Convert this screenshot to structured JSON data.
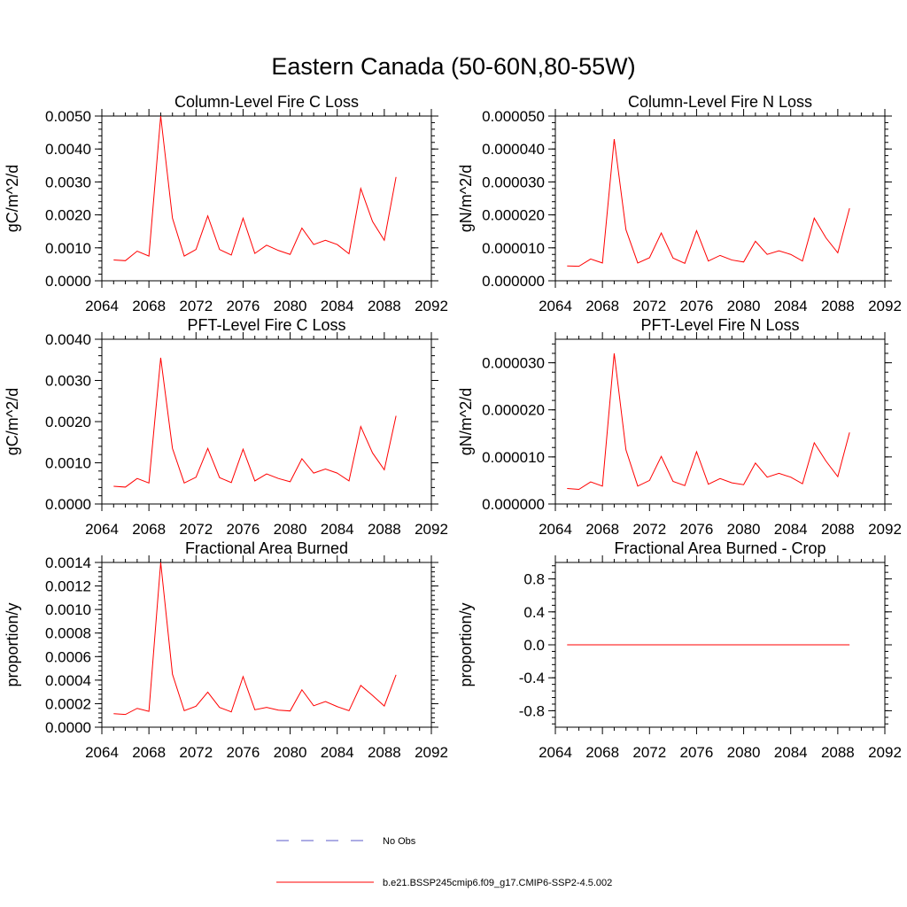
{
  "title": "Eastern Canada (50-60N,80-55W)",
  "colors": {
    "model": "#ff0000",
    "obs": "#5a5ac8"
  },
  "legend": [
    {
      "label": "No Obs",
      "style": "dashed",
      "color": "#5a5ac8"
    },
    {
      "label": "b.e21.BSSP245cmip6.f09_g17.CMIP6-SSP2-4.5.002",
      "style": "solid",
      "color": "#ff0000"
    }
  ],
  "chart_data": [
    {
      "type": "line",
      "title": "Column-Level Fire C Loss",
      "ylabel": "gC/m^2/d",
      "xlim": [
        2064,
        2092
      ],
      "ylim": [
        0,
        0.005
      ],
      "xticks": [
        2064,
        2068,
        2072,
        2076,
        2080,
        2084,
        2088,
        2092
      ],
      "yticks": [
        0,
        0.001,
        0.002,
        0.003,
        0.004,
        0.005
      ],
      "ytick_labels": [
        "0.0000",
        "0.0010",
        "0.0020",
        "0.0030",
        "0.0040",
        "0.0050"
      ],
      "x": [
        2065,
        2066,
        2067,
        2068,
        2069,
        2070,
        2071,
        2072,
        2073,
        2074,
        2075,
        2076,
        2077,
        2078,
        2079,
        2080,
        2081,
        2082,
        2083,
        2084,
        2085,
        2086,
        2087,
        2088,
        2089
      ],
      "series": [
        {
          "values": [
            0.00063,
            0.00061,
            0.0009,
            0.00075,
            0.005,
            0.0019,
            0.00075,
            0.00095,
            0.00197,
            0.00095,
            0.00078,
            0.0019,
            0.00083,
            0.00108,
            0.00092,
            0.0008,
            0.0016,
            0.0011,
            0.00123,
            0.0011,
            0.00082,
            0.0028,
            0.0018,
            0.00123,
            0.00315
          ]
        }
      ]
    },
    {
      "type": "line",
      "title": "Column-Level Fire N Loss",
      "ylabel": "gN/m^2/d",
      "xlim": [
        2064,
        2092
      ],
      "ylim": [
        0,
        5e-05
      ],
      "xticks": [
        2064,
        2068,
        2072,
        2076,
        2080,
        2084,
        2088,
        2092
      ],
      "yticks": [
        0,
        1e-05,
        2e-05,
        3e-05,
        4e-05,
        5e-05
      ],
      "ytick_labels": [
        "0.000000",
        "0.000010",
        "0.000020",
        "0.000030",
        "0.000040",
        "0.000050"
      ],
      "x": [
        2065,
        2066,
        2067,
        2068,
        2069,
        2070,
        2071,
        2072,
        2073,
        2074,
        2075,
        2076,
        2077,
        2078,
        2079,
        2080,
        2081,
        2082,
        2083,
        2084,
        2085,
        2086,
        2087,
        2088,
        2089
      ],
      "series": [
        {
          "values": [
            4.5e-06,
            4.4e-06,
            6.6e-06,
            5.4e-06,
            4.3e-05,
            1.55e-05,
            5.4e-06,
            7e-06,
            1.45e-05,
            6.9e-06,
            5.3e-06,
            1.52e-05,
            6e-06,
            7.7e-06,
            6.3e-06,
            5.7e-06,
            1.2e-05,
            8e-06,
            9.1e-06,
            8e-06,
            6e-06,
            1.9e-05,
            1.3e-05,
            8.5e-06,
            2.2e-05
          ]
        }
      ]
    },
    {
      "type": "line",
      "title": "PFT-Level Fire C Loss",
      "ylabel": "gC/m^2/d",
      "xlim": [
        2064,
        2092
      ],
      "ylim": [
        0,
        0.004
      ],
      "xticks": [
        2064,
        2068,
        2072,
        2076,
        2080,
        2084,
        2088,
        2092
      ],
      "yticks": [
        0,
        0.001,
        0.002,
        0.003,
        0.004
      ],
      "ytick_labels": [
        "0.0000",
        "0.0010",
        "0.0020",
        "0.0030",
        "0.0040"
      ],
      "x": [
        2065,
        2066,
        2067,
        2068,
        2069,
        2070,
        2071,
        2072,
        2073,
        2074,
        2075,
        2076,
        2077,
        2078,
        2079,
        2080,
        2081,
        2082,
        2083,
        2084,
        2085,
        2086,
        2087,
        2088,
        2089
      ],
      "series": [
        {
          "values": [
            0.00043,
            0.00041,
            0.00062,
            0.00051,
            0.00355,
            0.00135,
            0.00051,
            0.00065,
            0.00135,
            0.00064,
            0.00052,
            0.00133,
            0.00056,
            0.00073,
            0.00062,
            0.00054,
            0.0011,
            0.00075,
            0.00085,
            0.00075,
            0.00056,
            0.00188,
            0.00124,
            0.00083,
            0.00214
          ]
        }
      ]
    },
    {
      "type": "line",
      "title": "PFT-Level Fire N Loss",
      "ylabel": "gN/m^2/d",
      "xlim": [
        2064,
        2092
      ],
      "ylim": [
        0,
        3.5e-05
      ],
      "xticks": [
        2064,
        2068,
        2072,
        2076,
        2080,
        2084,
        2088,
        2092
      ],
      "yticks": [
        0,
        1e-05,
        2e-05,
        3e-05
      ],
      "ytick_labels": [
        "0.000000",
        "0.000010",
        "0.000020",
        "0.000030"
      ],
      "x": [
        2065,
        2066,
        2067,
        2068,
        2069,
        2070,
        2071,
        2072,
        2073,
        2074,
        2075,
        2076,
        2077,
        2078,
        2079,
        2080,
        2081,
        2082,
        2083,
        2084,
        2085,
        2086,
        2087,
        2088,
        2089
      ],
      "series": [
        {
          "values": [
            3.3e-06,
            3.1e-06,
            4.7e-06,
            3.8e-06,
            3.2e-05,
            1.15e-05,
            3.8e-06,
            5e-06,
            1.01e-05,
            4.8e-06,
            3.9e-06,
            1.11e-05,
            4.2e-06,
            5.4e-06,
            4.5e-06,
            4.1e-06,
            8.7e-06,
            5.7e-06,
            6.5e-06,
            5.7e-06,
            4.3e-06,
            1.3e-05,
            9.1e-06,
            5.8e-06,
            1.52e-05
          ]
        }
      ]
    },
    {
      "type": "line",
      "title": "Fractional Area Burned",
      "ylabel": "proportion/y",
      "xlim": [
        2064,
        2092
      ],
      "ylim": [
        0,
        0.0014
      ],
      "xticks": [
        2064,
        2068,
        2072,
        2076,
        2080,
        2084,
        2088,
        2092
      ],
      "yticks": [
        0,
        0.0002,
        0.0004,
        0.0006,
        0.0008,
        0.001,
        0.0012,
        0.0014
      ],
      "ytick_labels": [
        "0.0000",
        "0.0002",
        "0.0004",
        "0.0006",
        "0.0008",
        "0.0010",
        "0.0012",
        "0.0014"
      ],
      "x": [
        2065,
        2066,
        2067,
        2068,
        2069,
        2070,
        2071,
        2072,
        2073,
        2074,
        2075,
        2076,
        2077,
        2078,
        2079,
        2080,
        2081,
        2082,
        2083,
        2084,
        2085,
        2086,
        2087,
        2088,
        2089
      ],
      "series": [
        {
          "values": [
            0.000115,
            0.000108,
            0.00016,
            0.000135,
            0.0014,
            0.00045,
            0.00014,
            0.000178,
            0.000298,
            0.000168,
            0.00013,
            0.00043,
            0.000148,
            0.000168,
            0.000145,
            0.000138,
            0.000318,
            0.000182,
            0.000218,
            0.000175,
            0.00014,
            0.000355,
            0.00027,
            0.00018,
            0.000445
          ]
        }
      ]
    },
    {
      "type": "line",
      "title": "Fractional Area Burned - Crop",
      "ylabel": "proportion/y",
      "xlim": [
        2064,
        2092
      ],
      "ylim": [
        -1.0,
        1.0
      ],
      "xticks": [
        2064,
        2068,
        2072,
        2076,
        2080,
        2084,
        2088,
        2092
      ],
      "yticks": [
        -0.8,
        -0.4,
        0,
        0.4,
        0.8
      ],
      "ytick_labels": [
        "-0.8",
        "-0.4",
        "0.0",
        "0.4",
        "0.8"
      ],
      "x": [
        2065,
        2066,
        2067,
        2068,
        2069,
        2070,
        2071,
        2072,
        2073,
        2074,
        2075,
        2076,
        2077,
        2078,
        2079,
        2080,
        2081,
        2082,
        2083,
        2084,
        2085,
        2086,
        2087,
        2088,
        2089
      ],
      "series": [
        {
          "values": [
            0,
            0,
            0,
            0,
            0,
            0,
            0,
            0,
            0,
            0,
            0,
            0,
            0,
            0,
            0,
            0,
            0,
            0,
            0,
            0,
            0,
            0,
            0,
            0,
            0
          ]
        }
      ]
    }
  ]
}
